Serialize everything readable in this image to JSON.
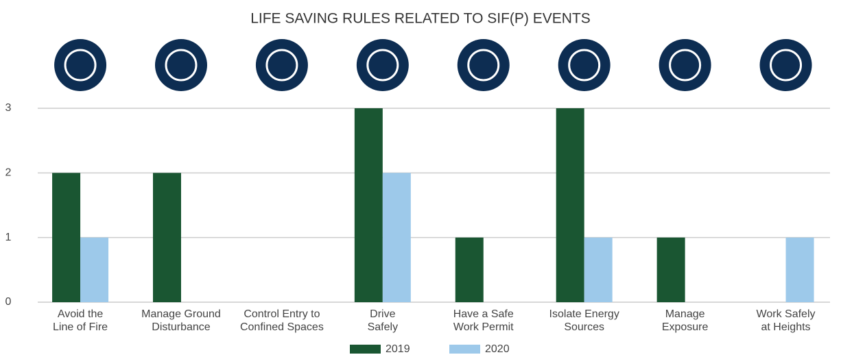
{
  "chart_data": {
    "type": "bar",
    "title": "LIFE SAVING RULES RELATED TO SIF(P) EVENTS",
    "categories": [
      "Avoid the\nLine of Fire",
      "Manage Ground\nDisturbance",
      "Control Entry to\nConfined Spaces",
      "Drive\nSafely",
      "Have a Safe\nWork Permit",
      "Isolate Energy\nSources",
      "Manage\nExposure",
      "Work Safely\nat Heights"
    ],
    "series": [
      {
        "name": "2019",
        "color": "#1a5632",
        "values": [
          2,
          2,
          0,
          3,
          1,
          3,
          1,
          0
        ]
      },
      {
        "name": "2020",
        "color": "#9dc9ea",
        "values": [
          1,
          0,
          0,
          2,
          0,
          1,
          0,
          1
        ]
      }
    ],
    "ylim": [
      0,
      3
    ],
    "yticks": [
      0,
      1,
      2,
      3
    ],
    "grid": true,
    "legend": "bottom"
  }
}
